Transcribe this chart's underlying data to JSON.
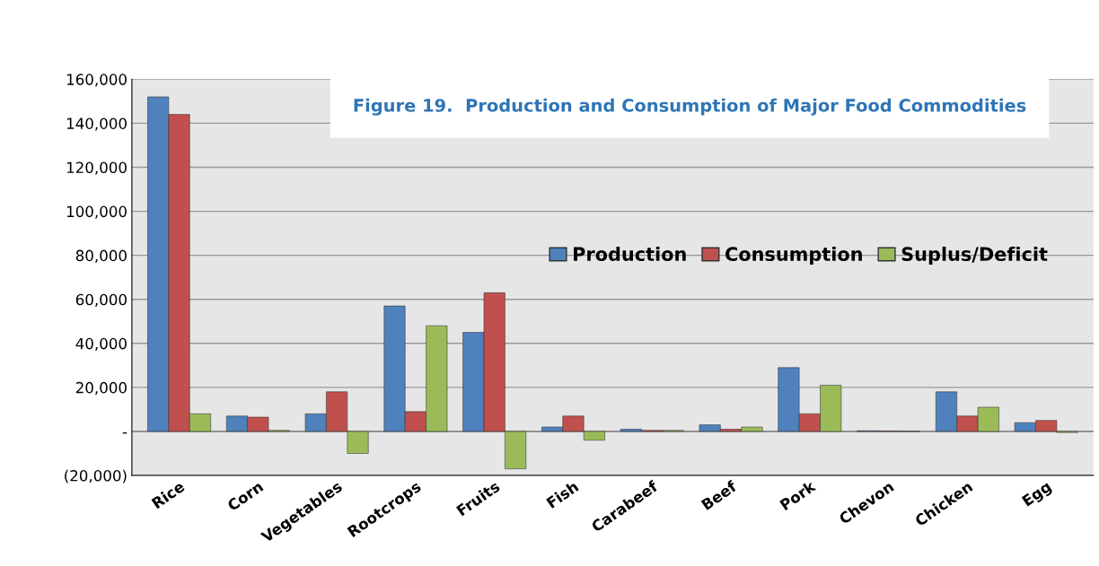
{
  "chart_data": {
    "type": "bar",
    "title": "Figure 19.  Production and Consumption of Major Food Commodities",
    "categories": [
      "Rice",
      "Corn",
      "Vegetables",
      "Rootcrops",
      "Fruits",
      "Fish",
      "Carabeef",
      "Beef",
      "Pork",
      "Chevon",
      "Chicken",
      "Egg"
    ],
    "series": [
      {
        "name": "Production",
        "color": "#4f81bd",
        "values": [
          152000,
          7000,
          8000,
          57000,
          45000,
          2000,
          1000,
          3000,
          29000,
          300,
          18000,
          4000
        ]
      },
      {
        "name": "Consumption",
        "color": "#c0504d",
        "values": [
          144000,
          6500,
          18000,
          9000,
          63000,
          7000,
          500,
          1000,
          8000,
          200,
          7000,
          5000
        ]
      },
      {
        "name": "Suplus/Deficit",
        "color": "#9bbb59",
        "values": [
          8000,
          500,
          -10000,
          48000,
          -17000,
          -4000,
          500,
          2000,
          21000,
          100,
          11000,
          -500
        ]
      }
    ],
    "ylim": [
      -20000,
      160000
    ],
    "yticks": [
      {
        "value": -20000,
        "label": "(20,000)"
      },
      {
        "value": 0,
        "label": "-"
      },
      {
        "value": 20000,
        "label": "20,000"
      },
      {
        "value": 40000,
        "label": "40,000"
      },
      {
        "value": 60000,
        "label": "60,000"
      },
      {
        "value": 80000,
        "label": "80,000"
      },
      {
        "value": 100000,
        "label": "100,000"
      },
      {
        "value": 120000,
        "label": "120,000"
      },
      {
        "value": 140000,
        "label": "140,000"
      },
      {
        "value": 160000,
        "label": "160,000"
      }
    ],
    "grid": "y",
    "legend": "right"
  }
}
